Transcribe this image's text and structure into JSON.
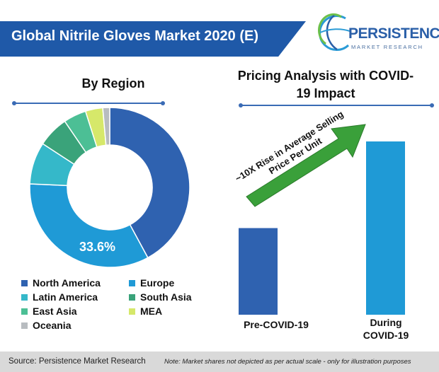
{
  "title": "Global Nitrile Gloves Market 2020 (E)",
  "logo": {
    "name": "PERSISTENCE",
    "tagline": "MARKET RESEARCH"
  },
  "colors": {
    "banner": "#1f59a8",
    "accent": "#3a6bb5"
  },
  "chart_data": [
    {
      "type": "pie",
      "title": "By Region",
      "donut": true,
      "categories": [
        "North America",
        "Europe",
        "Latin America",
        "South Asia",
        "East Asia",
        "MEA",
        "Oceania"
      ],
      "values": [
        42.1,
        33.6,
        8.5,
        6.3,
        4.6,
        3.5,
        1.4
      ],
      "colors": [
        "#2f62b0",
        "#1f9ad6",
        "#35b8c9",
        "#3aa37a",
        "#4cbf95",
        "#d6e86a",
        "#b8bcc0"
      ],
      "data_labels": [
        "",
        "33.6%",
        "",
        "",
        "",
        "",
        ""
      ],
      "legend_position": "bottom"
    },
    {
      "type": "bar",
      "title": "Pricing Analysis with COVID-19 Impact",
      "categories": [
        "Pre-COVID-19",
        "During COVID-19"
      ],
      "values": [
        1,
        2
      ],
      "colors": [
        "#2f62b0",
        "#1f9ad6"
      ],
      "annotation": "~10X Rise in Average Selling Price Per Unit"
    }
  ],
  "footer": {
    "source": "Source: Persistence Market Research",
    "note": "Note: Market shares not depicted as per actual scale - only for illustration purposes"
  }
}
